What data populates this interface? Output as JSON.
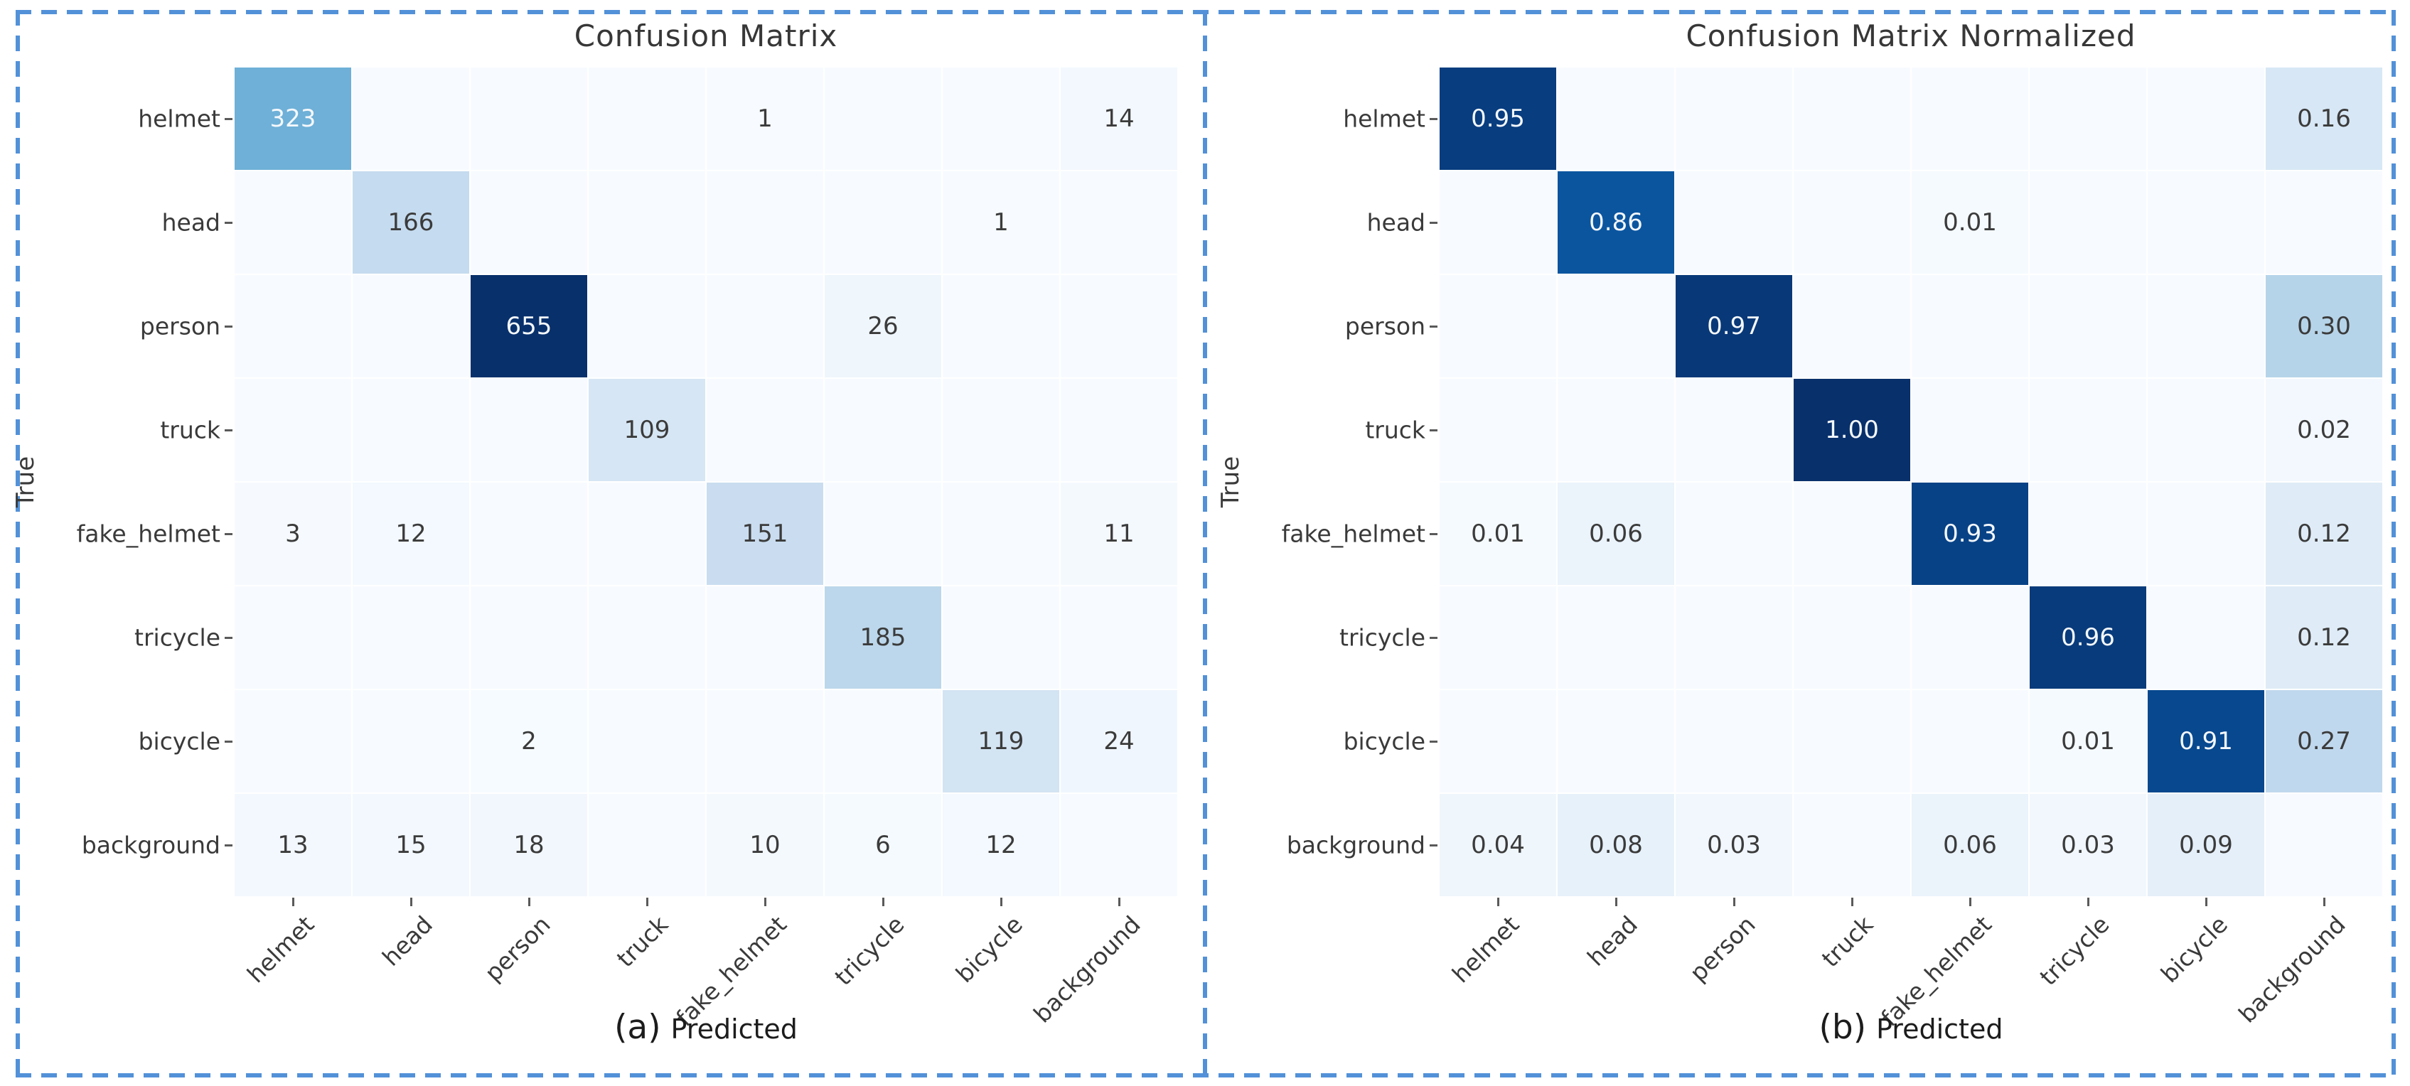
{
  "figure": {
    "border_color": "#5291d8",
    "tick_color": "#5a5a5a",
    "text_color": "#3a3a3a",
    "white_text_threshold": 0.45
  },
  "colormap_anchors": {
    "Blues": [
      [
        0.0,
        "#f7fbff"
      ],
      [
        0.125,
        "#deebf7"
      ],
      [
        0.25,
        "#c6dbef"
      ],
      [
        0.375,
        "#9ecae1"
      ],
      [
        0.5,
        "#6baed6"
      ],
      [
        0.625,
        "#4292c6"
      ],
      [
        0.75,
        "#2171b5"
      ],
      [
        0.875,
        "#08519c"
      ],
      [
        1.0,
        "#08306b"
      ]
    ]
  },
  "chart_data": [
    {
      "type": "heatmap",
      "panel_letter": "(a)",
      "title": "Confusion Matrix",
      "xlabel": "Predicted",
      "ylabel": "True",
      "colormap": "Blues",
      "vmax": 655,
      "x_tick_labels": [
        "helmet",
        "head",
        "person",
        "truck",
        "fake_helmet",
        "tricycle",
        "bicycle",
        "background"
      ],
      "y_tick_labels": [
        "helmet",
        "head",
        "person",
        "truck",
        "fake_helmet",
        "tricycle",
        "bicycle",
        "background"
      ],
      "values": [
        [
          "323",
          "",
          "",
          "",
          "1",
          "",
          "",
          "14"
        ],
        [
          "",
          "166",
          "",
          "",
          "",
          "",
          "1",
          ""
        ],
        [
          "",
          "",
          "655",
          "",
          "",
          "26",
          "",
          ""
        ],
        [
          "",
          "",
          "",
          "109",
          "",
          "",
          "",
          ""
        ],
        [
          "3",
          "12",
          "",
          "",
          "151",
          "",
          "",
          "11"
        ],
        [
          "",
          "",
          "",
          "",
          "",
          "185",
          "",
          ""
        ],
        [
          "",
          "",
          "2",
          "",
          "",
          "",
          "119",
          "24"
        ],
        [
          "13",
          "15",
          "18",
          "",
          "10",
          "6",
          "12",
          ""
        ]
      ]
    },
    {
      "type": "heatmap",
      "panel_letter": "(b)",
      "title": "Confusion Matrix Normalized",
      "xlabel": "Predicted",
      "ylabel": "True",
      "colormap": "Blues",
      "vmax": 1,
      "x_tick_labels": [
        "helmet",
        "head",
        "person",
        "truck",
        "fake_helmet",
        "tricycle",
        "bicycle",
        "background"
      ],
      "y_tick_labels": [
        "helmet",
        "head",
        "person",
        "truck",
        "fake_helmet",
        "tricycle",
        "bicycle",
        "background"
      ],
      "values": [
        [
          "0.95",
          "",
          "",
          "",
          "",
          "",
          "",
          "0.16"
        ],
        [
          "",
          "0.86",
          "",
          "",
          "0.01",
          "",
          "",
          ""
        ],
        [
          "",
          "",
          "0.97",
          "",
          "",
          "",
          "",
          "0.30"
        ],
        [
          "",
          "",
          "",
          "1.00",
          "",
          "",
          "",
          "0.02"
        ],
        [
          "0.01",
          "0.06",
          "",
          "",
          "0.93",
          "",
          "",
          "0.12"
        ],
        [
          "",
          "",
          "",
          "",
          "",
          "0.96",
          "",
          "0.12"
        ],
        [
          "",
          "",
          "",
          "",
          "",
          "0.01",
          "0.91",
          "0.27"
        ],
        [
          "0.04",
          "0.08",
          "0.03",
          "",
          "0.06",
          "0.03",
          "0.09",
          ""
        ]
      ]
    }
  ]
}
